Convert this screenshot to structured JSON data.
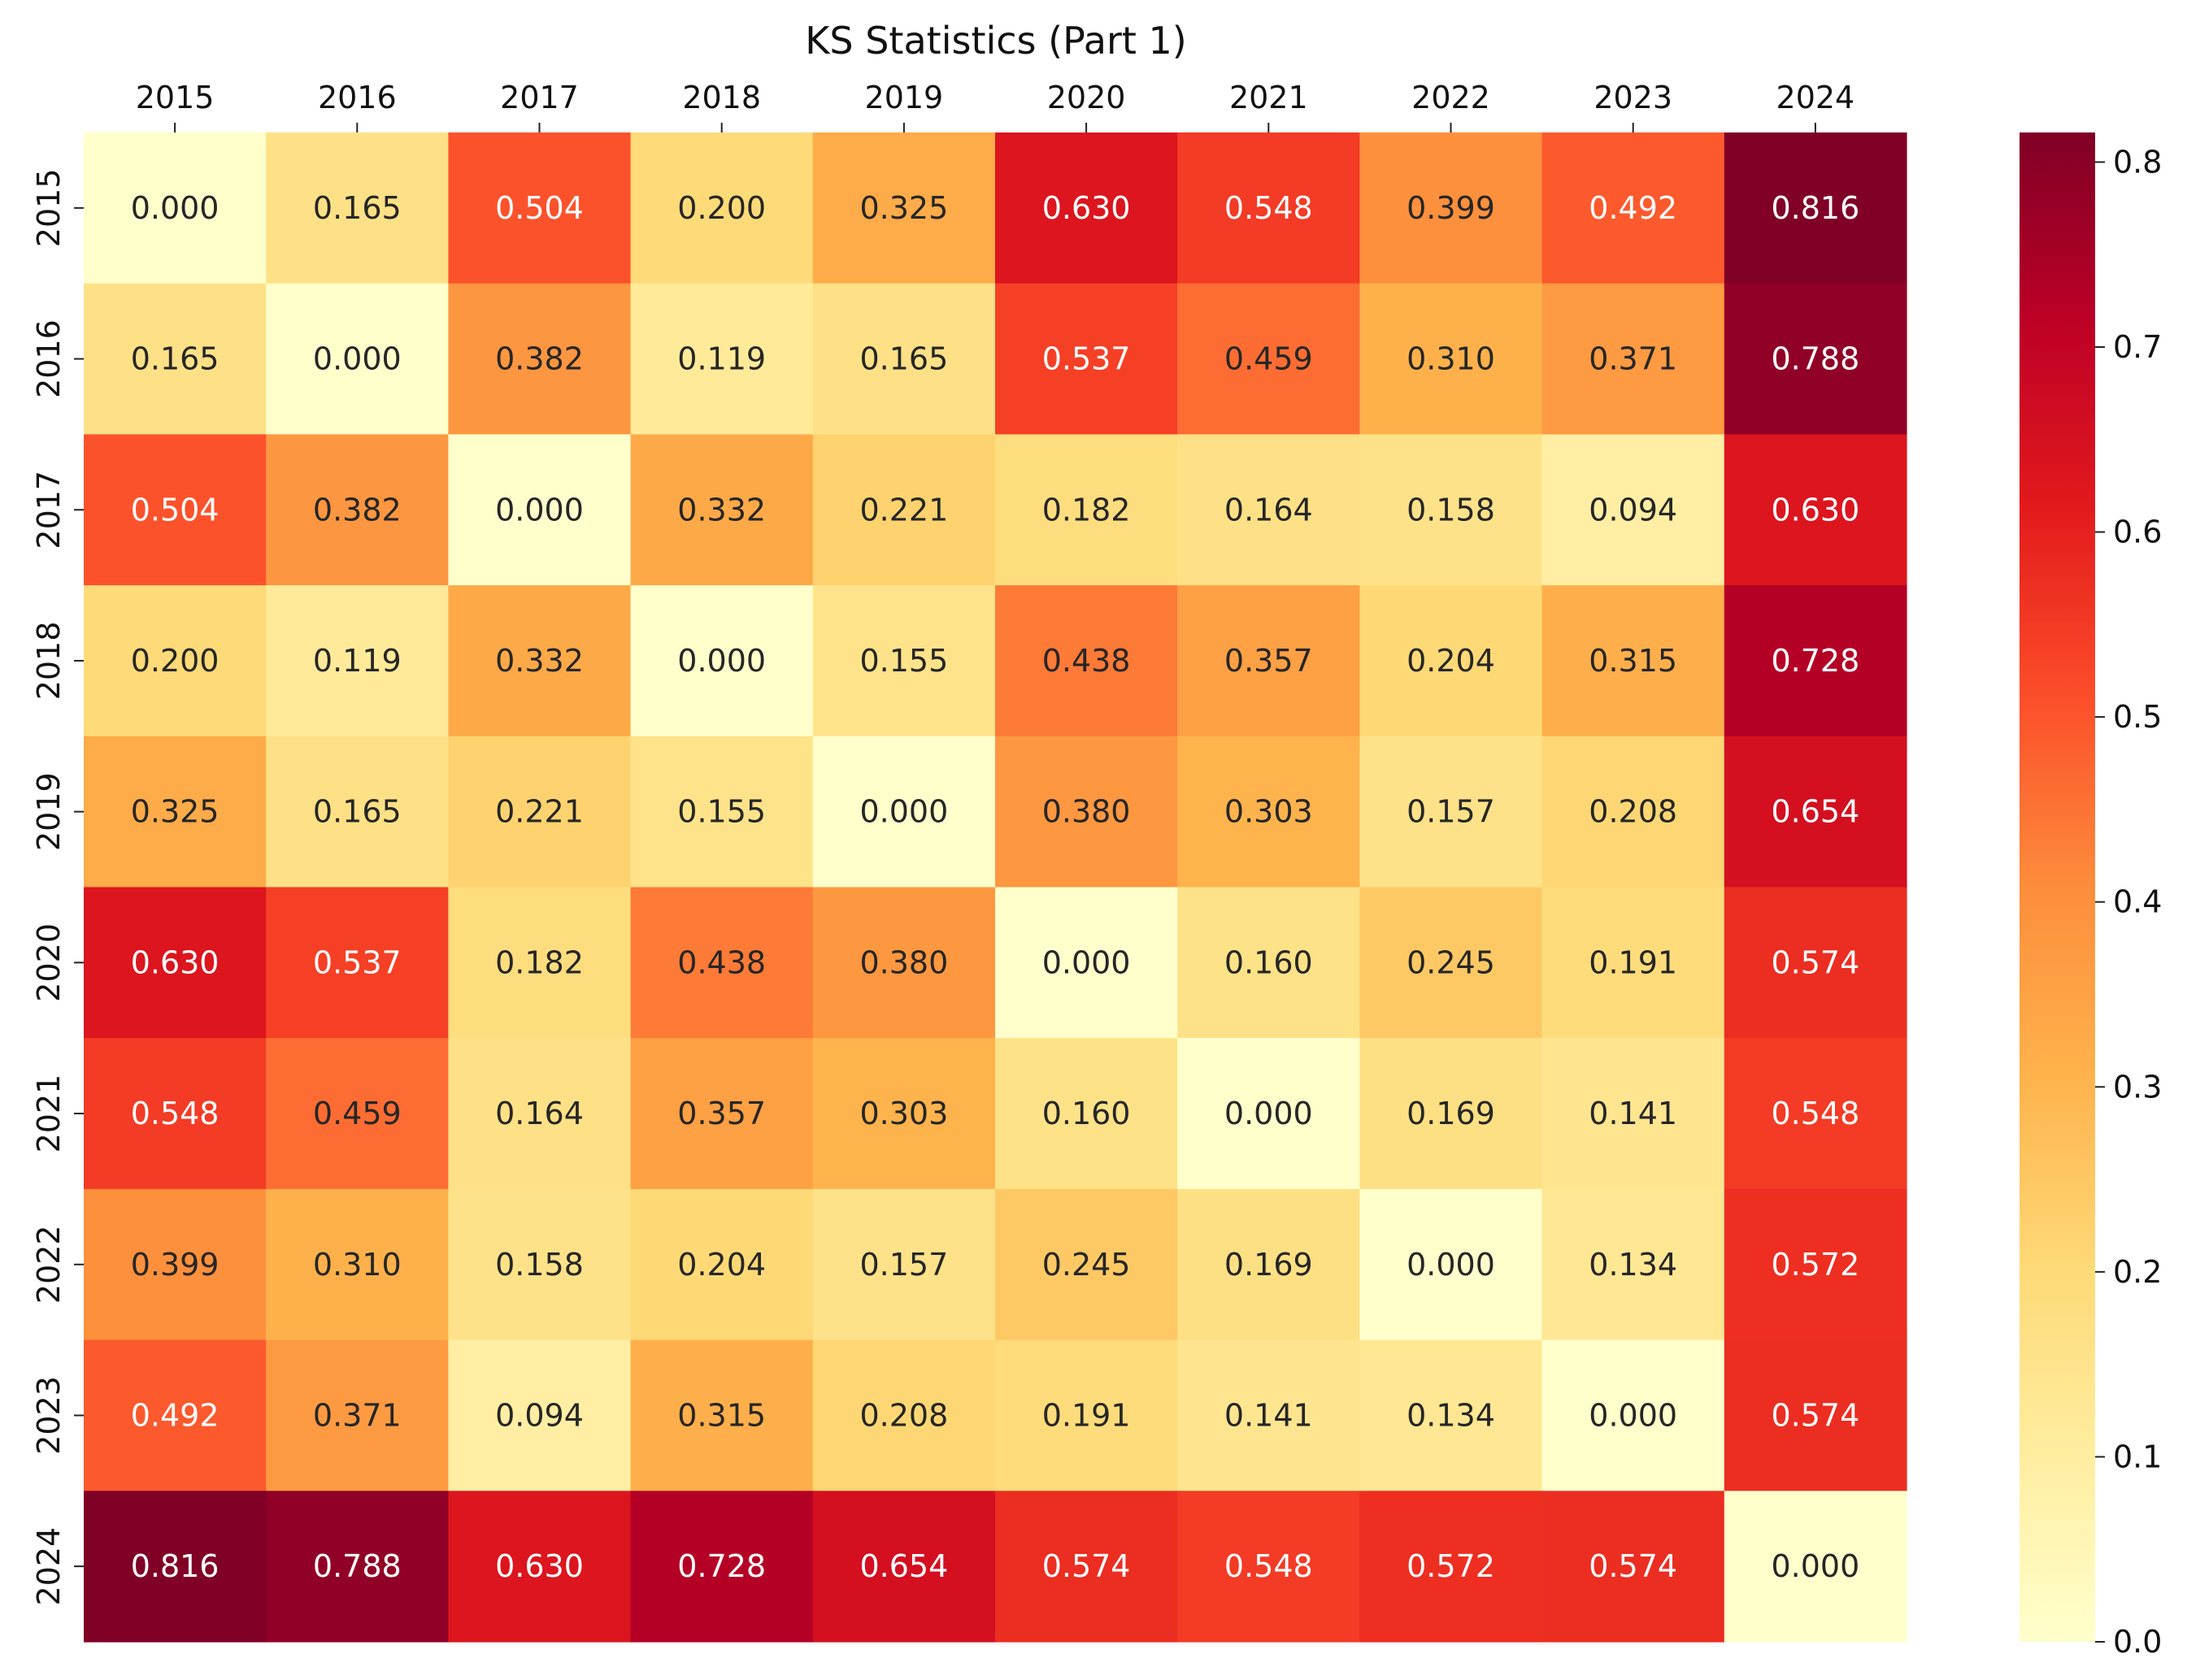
{
  "chart_data": {
    "type": "heatmap",
    "title": "KS Statistics (Part 1)",
    "x_labels": [
      "2015",
      "2016",
      "2017",
      "2018",
      "2019",
      "2020",
      "2021",
      "2022",
      "2023",
      "2024"
    ],
    "y_labels": [
      "2015",
      "2016",
      "2017",
      "2018",
      "2019",
      "2020",
      "2021",
      "2022",
      "2023",
      "2024"
    ],
    "values": [
      [
        0.0,
        0.165,
        0.504,
        0.2,
        0.325,
        0.63,
        0.548,
        0.399,
        0.492,
        0.816
      ],
      [
        0.165,
        0.0,
        0.382,
        0.119,
        0.165,
        0.537,
        0.459,
        0.31,
        0.371,
        0.788
      ],
      [
        0.504,
        0.382,
        0.0,
        0.332,
        0.221,
        0.182,
        0.164,
        0.158,
        0.094,
        0.63
      ],
      [
        0.2,
        0.119,
        0.332,
        0.0,
        0.155,
        0.438,
        0.357,
        0.204,
        0.315,
        0.728
      ],
      [
        0.325,
        0.165,
        0.221,
        0.155,
        0.0,
        0.38,
        0.303,
        0.157,
        0.208,
        0.654
      ],
      [
        0.63,
        0.537,
        0.182,
        0.438,
        0.38,
        0.0,
        0.16,
        0.245,
        0.191,
        0.574
      ],
      [
        0.548,
        0.459,
        0.164,
        0.357,
        0.303,
        0.16,
        0.0,
        0.169,
        0.141,
        0.548
      ],
      [
        0.399,
        0.31,
        0.158,
        0.204,
        0.157,
        0.245,
        0.169,
        0.0,
        0.134,
        0.572
      ],
      [
        0.492,
        0.371,
        0.094,
        0.315,
        0.208,
        0.191,
        0.141,
        0.134,
        0.0,
        0.574
      ],
      [
        0.816,
        0.788,
        0.63,
        0.728,
        0.654,
        0.574,
        0.548,
        0.572,
        0.574,
        0.0
      ]
    ],
    "value_format": "0.000",
    "colormap": "YlOrRd",
    "colormap_stops": [
      "#ffffcc",
      "#ffeda0",
      "#fed976",
      "#feb24c",
      "#fd8d3c",
      "#fc4e2a",
      "#e31a1c",
      "#bd0026",
      "#800026"
    ],
    "color_range": [
      0.0,
      0.816
    ],
    "colorbar_ticks": [
      "0.0",
      "0.1",
      "0.2",
      "0.3",
      "0.4",
      "0.5",
      "0.6",
      "0.7",
      "0.8"
    ],
    "x_axis_position": "top",
    "grid": false
  }
}
